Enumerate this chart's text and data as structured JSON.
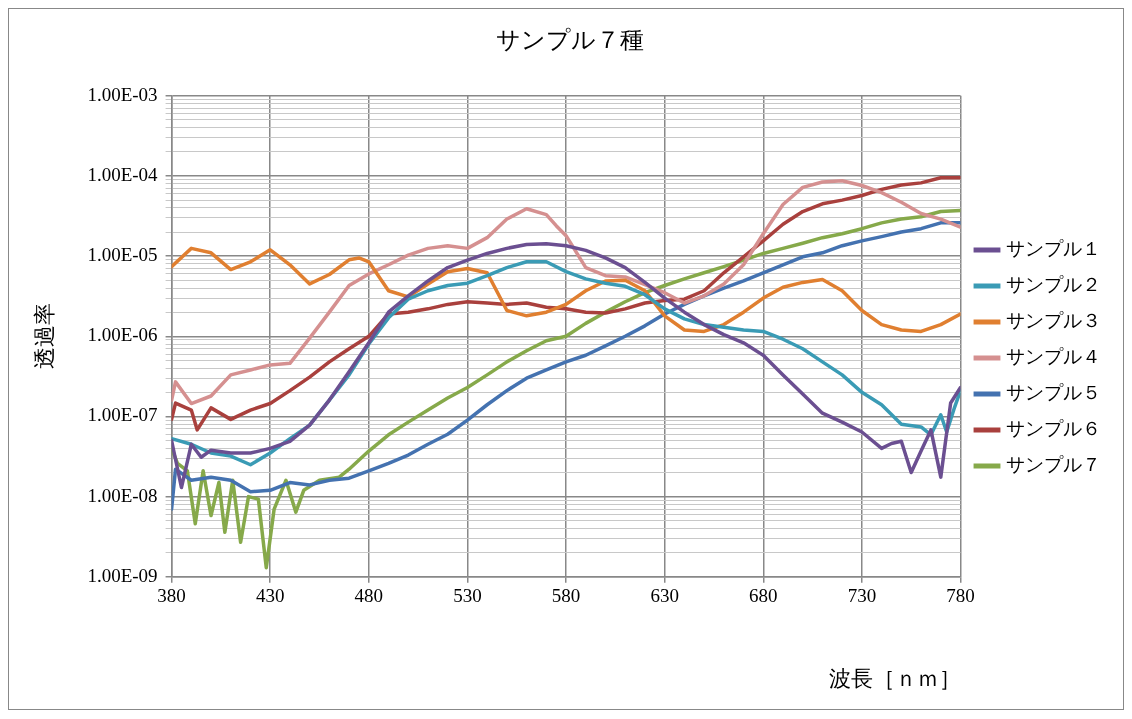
{
  "chart_data": {
    "type": "line",
    "title": "サンプル７種",
    "xlabel": "波長［ｎｍ］",
    "ylabel": "透過率",
    "log": "y",
    "grid": true,
    "legend": "right",
    "marker": "none",
    "line_style": "solid",
    "xlim": [
      380,
      780
    ],
    "xticks": [
      380,
      430,
      480,
      530,
      580,
      630,
      680,
      730,
      780
    ],
    "ylim": [
      1e-09,
      0.001
    ],
    "yticks": [
      {
        "value": 1e-09,
        "label": "1.00E-09"
      },
      {
        "value": 2e-09,
        "label": null
      },
      {
        "value": 3e-09,
        "label": null
      },
      {
        "value": 4e-09,
        "label": null
      },
      {
        "value": 5e-09,
        "label": null
      },
      {
        "value": 6e-09,
        "label": null
      },
      {
        "value": 7e-09,
        "label": null
      },
      {
        "value": 8e-09,
        "label": null
      },
      {
        "value": 9e-09,
        "label": null
      },
      {
        "value": 1e-08,
        "label": "1.00E-08"
      },
      {
        "value": 2e-08,
        "label": null
      },
      {
        "value": 3e-08,
        "label": null
      },
      {
        "value": 4e-08,
        "label": null
      },
      {
        "value": 5e-08,
        "label": null
      },
      {
        "value": 6e-08,
        "label": null
      },
      {
        "value": 7e-08,
        "label": null
      },
      {
        "value": 8e-08,
        "label": null
      },
      {
        "value": 9e-08,
        "label": null
      },
      {
        "value": 1e-07,
        "label": "1.00E-07"
      },
      {
        "value": 2e-07,
        "label": null
      },
      {
        "value": 3e-07,
        "label": null
      },
      {
        "value": 4e-07,
        "label": null
      },
      {
        "value": 5e-07,
        "label": null
      },
      {
        "value": 6e-07,
        "label": null
      },
      {
        "value": 7e-07,
        "label": null
      },
      {
        "value": 8e-07,
        "label": null
      },
      {
        "value": 9e-07,
        "label": null
      },
      {
        "value": 1e-06,
        "label": "1.00E-06"
      },
      {
        "value": 2e-06,
        "label": null
      },
      {
        "value": 3e-06,
        "label": null
      },
      {
        "value": 4e-06,
        "label": null
      },
      {
        "value": 5e-06,
        "label": null
      },
      {
        "value": 6e-06,
        "label": null
      },
      {
        "value": 7e-06,
        "label": null
      },
      {
        "value": 8e-06,
        "label": null
      },
      {
        "value": 9e-06,
        "label": null
      },
      {
        "value": 1e-05,
        "label": "1.00E-05"
      },
      {
        "value": 2e-05,
        "label": null
      },
      {
        "value": 3e-05,
        "label": null
      },
      {
        "value": 4e-05,
        "label": null
      },
      {
        "value": 5e-05,
        "label": null
      },
      {
        "value": 6e-05,
        "label": null
      },
      {
        "value": 7e-05,
        "label": null
      },
      {
        "value": 8e-05,
        "label": null
      },
      {
        "value": 9e-05,
        "label": null
      },
      {
        "value": 0.0001,
        "label": "1.00E-04"
      },
      {
        "value": 0.0002,
        "label": null
      },
      {
        "value": 0.0003,
        "label": null
      },
      {
        "value": 0.0004,
        "label": null
      },
      {
        "value": 0.0005,
        "label": null
      },
      {
        "value": 0.0006,
        "label": null
      },
      {
        "value": 0.0007,
        "label": null
      },
      {
        "value": 0.0008,
        "label": null
      },
      {
        "value": 0.0009,
        "label": null
      },
      {
        "value": 0.001,
        "label": "1.00E-03"
      }
    ],
    "series": [
      {
        "name": "サンプル１",
        "color": "#6b4f91",
        "x": [
          380,
          385,
          390,
          395,
          400,
          410,
          420,
          430,
          440,
          450,
          460,
          470,
          480,
          490,
          500,
          510,
          520,
          530,
          540,
          550,
          560,
          570,
          580,
          590,
          600,
          610,
          620,
          630,
          640,
          650,
          660,
          670,
          680,
          690,
          700,
          710,
          720,
          730,
          740,
          745,
          750,
          755,
          760,
          765,
          770,
          775,
          780
        ],
        "values": [
          5e-08,
          1.3e-08,
          4.5e-08,
          3.1e-08,
          3.8e-08,
          3.5e-08,
          3.5e-08,
          4e-08,
          4.9e-08,
          7.8e-08,
          1.6e-07,
          3.6e-07,
          8.3e-07,
          2e-06,
          3.2e-06,
          4.9e-06,
          7.2e-06,
          8.9e-06,
          1.08e-05,
          1.25e-05,
          1.4e-05,
          1.43e-05,
          1.35e-05,
          1.18e-05,
          9.5e-06,
          7.2e-06,
          4.7e-06,
          3e-06,
          2e-06,
          1.4e-06,
          1.05e-06,
          8.3e-07,
          5.8e-07,
          3.3e-07,
          1.9e-07,
          1.1e-07,
          8.5e-08,
          6.4e-08,
          4e-08,
          4.6e-08,
          4.9e-08,
          2e-08,
          3.7e-08,
          6.8e-08,
          1.75e-08,
          1.47e-07,
          2.3e-07
        ]
      },
      {
        "name": "サンプル２",
        "color": "#3a9bb5",
        "x": [
          380,
          390,
          400,
          410,
          420,
          430,
          440,
          450,
          460,
          470,
          480,
          490,
          500,
          510,
          520,
          530,
          540,
          550,
          560,
          570,
          580,
          590,
          600,
          610,
          620,
          630,
          640,
          650,
          660,
          670,
          680,
          690,
          700,
          710,
          720,
          730,
          740,
          750,
          760,
          765,
          770,
          773,
          777,
          780
        ],
        "values": [
          5.3e-08,
          4.5e-08,
          3.5e-08,
          3.2e-08,
          2.5e-08,
          3.5e-08,
          5.3e-08,
          7.8e-08,
          1.6e-07,
          3.3e-07,
          8e-07,
          1.7e-06,
          2.9e-06,
          3.7e-06,
          4.3e-06,
          4.6e-06,
          5.7e-06,
          7.2e-06,
          8.5e-06,
          8.5e-06,
          6.4e-06,
          5.2e-06,
          4.6e-06,
          4.2e-06,
          3.3e-06,
          2.2e-06,
          1.65e-06,
          1.4e-06,
          1.3e-06,
          1.2e-06,
          1.15e-06,
          9.2e-07,
          7e-07,
          4.8e-07,
          3.3e-07,
          2e-07,
          1.4e-07,
          8e-08,
          7.4e-08,
          5.9e-08,
          1.05e-07,
          6.4e-08,
          1.3e-07,
          2.1e-07
        ]
      },
      {
        "name": "サンプル３",
        "color": "#e07f30",
        "x": [
          380,
          390,
          400,
          410,
          420,
          430,
          440,
          450,
          460,
          470,
          475,
          480,
          490,
          500,
          510,
          520,
          530,
          540,
          550,
          560,
          570,
          580,
          590,
          600,
          610,
          620,
          630,
          640,
          650,
          660,
          670,
          680,
          690,
          700,
          710,
          720,
          730,
          740,
          750,
          760,
          770,
          780
        ],
        "values": [
          7.4e-06,
          1.25e-05,
          1.1e-05,
          6.8e-06,
          8.5e-06,
          1.2e-05,
          7.8e-06,
          4.5e-06,
          5.9e-06,
          9e-06,
          9.5e-06,
          8.5e-06,
          3.7e-06,
          3.1e-06,
          4.5e-06,
          6.4e-06,
          7e-06,
          6.2e-06,
          2.1e-06,
          1.8e-06,
          2e-06,
          2.5e-06,
          3.7e-06,
          4.9e-06,
          5e-06,
          3.7e-06,
          1.8e-06,
          1.2e-06,
          1.15e-06,
          1.4e-06,
          2e-06,
          3e-06,
          4.1e-06,
          4.7e-06,
          5.1e-06,
          3.7e-06,
          2.1e-06,
          1.4e-06,
          1.2e-06,
          1.15e-06,
          1.4e-06,
          1.9e-06
        ]
      },
      {
        "name": "サンプル４",
        "color": "#d59090",
        "x": [
          380,
          382,
          390,
          400,
          410,
          420,
          430,
          440,
          450,
          460,
          470,
          480,
          490,
          500,
          510,
          520,
          530,
          540,
          550,
          560,
          570,
          575,
          580,
          590,
          600,
          610,
          620,
          630,
          640,
          650,
          660,
          670,
          680,
          690,
          700,
          710,
          720,
          730,
          740,
          750,
          760,
          770,
          780
        ],
        "values": [
          1.6e-07,
          2.7e-07,
          1.45e-07,
          1.8e-07,
          3.3e-07,
          3.8e-07,
          4.4e-07,
          4.6e-07,
          9.5e-07,
          2e-06,
          4.3e-06,
          6e-06,
          7.8e-06,
          1.03e-05,
          1.25e-05,
          1.35e-05,
          1.25e-05,
          1.7e-05,
          2.9e-05,
          3.9e-05,
          3.3e-05,
          2.4e-05,
          1.8e-05,
          7.2e-06,
          5.7e-06,
          5.5e-06,
          4.4e-06,
          3.5e-06,
          2.6e-06,
          3.2e-06,
          4.5e-06,
          7.8e-06,
          1.9e-05,
          4.4e-05,
          7.2e-05,
          8.4e-05,
          8.7e-05,
          7.6e-05,
          6.2e-05,
          4.7e-05,
          3.4e-05,
          2.9e-05,
          2.3e-05
        ]
      },
      {
        "name": "サンプル５",
        "color": "#4472b0",
        "x": [
          380,
          382,
          390,
          400,
          410,
          420,
          430,
          440,
          450,
          460,
          470,
          480,
          490,
          500,
          510,
          520,
          530,
          540,
          550,
          560,
          570,
          580,
          590,
          600,
          610,
          620,
          630,
          640,
          650,
          660,
          670,
          680,
          690,
          700,
          710,
          720,
          730,
          740,
          750,
          760,
          770,
          780
        ],
        "values": [
          7e-09,
          2.2e-08,
          1.6e-08,
          1.75e-08,
          1.6e-08,
          1.15e-08,
          1.2e-08,
          1.5e-08,
          1.4e-08,
          1.6e-08,
          1.7e-08,
          2.1e-08,
          2.6e-08,
          3.3e-08,
          4.5e-08,
          6e-08,
          9e-08,
          1.4e-07,
          2.1e-07,
          3e-07,
          3.8e-07,
          4.8e-07,
          5.8e-07,
          7.6e-07,
          1e-06,
          1.35e-06,
          1.9e-06,
          2.5e-06,
          3.2e-06,
          4e-06,
          4.9e-06,
          6.2e-06,
          7.8e-06,
          9.8e-06,
          1.1e-05,
          1.35e-05,
          1.55e-05,
          1.75e-05,
          2e-05,
          2.2e-05,
          2.6e-05,
          2.6e-05
        ]
      },
      {
        "name": "サンプル６",
        "color": "#a9403d",
        "x": [
          380,
          382,
          390,
          393,
          400,
          410,
          420,
          430,
          440,
          450,
          460,
          470,
          480,
          490,
          500,
          510,
          520,
          530,
          540,
          550,
          560,
          570,
          580,
          590,
          600,
          610,
          620,
          630,
          640,
          650,
          660,
          670,
          680,
          690,
          700,
          710,
          720,
          730,
          740,
          750,
          760,
          770,
          780
        ],
        "values": [
          9.2e-08,
          1.47e-07,
          1.2e-07,
          6.8e-08,
          1.28e-07,
          9.2e-08,
          1.2e-07,
          1.45e-07,
          2.1e-07,
          3.1e-07,
          4.8e-07,
          7e-07,
          1e-06,
          1.9e-06,
          2e-06,
          2.2e-06,
          2.5e-06,
          2.7e-06,
          2.6e-06,
          2.5e-06,
          2.6e-06,
          2.3e-06,
          2.2e-06,
          2e-06,
          1.95e-06,
          2.2e-06,
          2.6e-06,
          2.8e-06,
          2.9e-06,
          3.7e-06,
          6.2e-06,
          9.8e-06,
          1.55e-05,
          2.5e-05,
          3.6e-05,
          4.5e-05,
          5e-05,
          5.7e-05,
          6.8e-05,
          7.7e-05,
          8.2e-05,
          9.5e-05,
          9.5e-05
        ]
      },
      {
        "name": "サンプル７",
        "color": "#86a94a",
        "x": [
          380,
          383,
          388,
          392,
          396,
          400,
          404,
          407,
          411,
          415,
          419,
          424,
          428,
          432,
          438,
          443,
          447,
          455,
          465,
          470,
          480,
          490,
          500,
          510,
          520,
          530,
          540,
          550,
          560,
          570,
          580,
          590,
          600,
          610,
          620,
          630,
          640,
          650,
          660,
          670,
          680,
          690,
          700,
          710,
          720,
          730,
          740,
          750,
          760,
          770,
          780
        ],
        "values": [
          4e-08,
          2.6e-08,
          2.1e-08,
          4.6e-09,
          2.1e-08,
          5.8e-09,
          1.5e-08,
          3.6e-09,
          1.6e-08,
          2.7e-09,
          1e-08,
          9.3e-09,
          1.3e-09,
          7e-09,
          1.6e-08,
          6.4e-09,
          1.2e-08,
          1.6e-08,
          1.75e-08,
          2.2e-08,
          3.7e-08,
          5.9e-08,
          8.5e-08,
          1.2e-07,
          1.7e-07,
          2.3e-07,
          3.3e-07,
          4.8e-07,
          6.6e-07,
          8.8e-07,
          1e-06,
          1.45e-06,
          2e-06,
          2.7e-06,
          3.5e-06,
          4.3e-06,
          5.2e-06,
          6.2e-06,
          7.4e-06,
          8.9e-06,
          1.08e-05,
          1.25e-05,
          1.45e-05,
          1.7e-05,
          1.9e-05,
          2.2e-05,
          2.6e-05,
          2.9e-05,
          3.1e-05,
          3.6e-05,
          3.7e-05
        ]
      }
    ]
  }
}
